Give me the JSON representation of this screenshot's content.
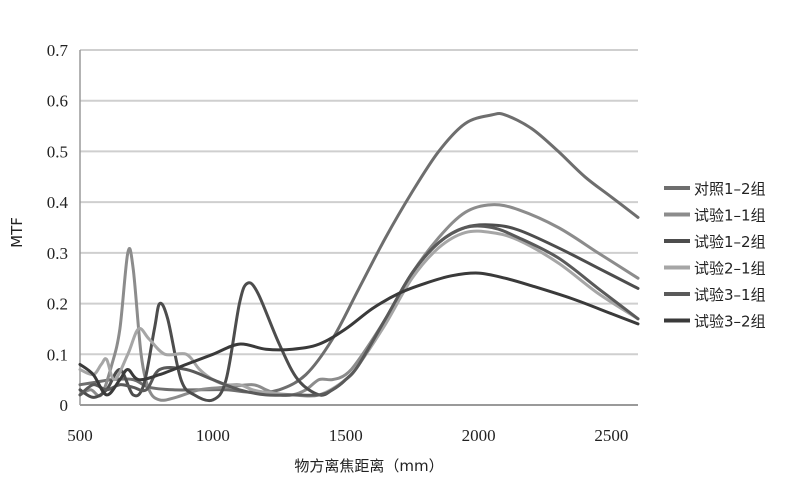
{
  "chart_data": {
    "type": "line",
    "xlabel": "物方离焦距离（mm）",
    "ylabel": "MTF",
    "xlim": [
      500,
      2600
    ],
    "ylim": [
      0,
      0.7
    ],
    "x_ticks": [
      500,
      1000,
      1500,
      2000,
      2500
    ],
    "y_ticks": [
      "0",
      "0.1",
      "0.2",
      "0.3",
      "0.4",
      "0.5",
      "0.6",
      "0.7"
    ],
    "grid": "horizontal",
    "legend_position": "right",
    "series": [
      {
        "name": "对照1–2组",
        "color": "#6e6e6e",
        "points": [
          [
            500,
            0.04
          ],
          [
            560,
            0.045
          ],
          [
            620,
            0.05
          ],
          [
            700,
            0.05
          ],
          [
            760,
            0.035
          ],
          [
            850,
            0.03
          ],
          [
            950,
            0.03
          ],
          [
            1050,
            0.03
          ],
          [
            1150,
            0.025
          ],
          [
            1250,
            0.03
          ],
          [
            1350,
            0.06
          ],
          [
            1450,
            0.13
          ],
          [
            1550,
            0.23
          ],
          [
            1650,
            0.33
          ],
          [
            1750,
            0.42
          ],
          [
            1850,
            0.5
          ],
          [
            1950,
            0.555
          ],
          [
            2050,
            0.572
          ],
          [
            2100,
            0.572
          ],
          [
            2200,
            0.545
          ],
          [
            2300,
            0.5
          ],
          [
            2400,
            0.45
          ],
          [
            2500,
            0.41
          ],
          [
            2600,
            0.37
          ]
        ]
      },
      {
        "name": "试验1–1组",
        "color": "#8c8c8c",
        "points": [
          [
            500,
            0.02
          ],
          [
            540,
            0.03
          ],
          [
            580,
            0.02
          ],
          [
            620,
            0.08
          ],
          [
            650,
            0.15
          ],
          [
            680,
            0.3
          ],
          [
            700,
            0.27
          ],
          [
            730,
            0.1
          ],
          [
            760,
            0.03
          ],
          [
            800,
            0.01
          ],
          [
            860,
            0.015
          ],
          [
            950,
            0.03
          ],
          [
            1050,
            0.035
          ],
          [
            1150,
            0.04
          ],
          [
            1200,
            0.03
          ],
          [
            1250,
            0.02
          ],
          [
            1300,
            0.02
          ],
          [
            1350,
            0.03
          ],
          [
            1400,
            0.05
          ],
          [
            1450,
            0.05
          ],
          [
            1500,
            0.06
          ],
          [
            1550,
            0.09
          ],
          [
            1650,
            0.17
          ],
          [
            1750,
            0.26
          ],
          [
            1850,
            0.33
          ],
          [
            1950,
            0.38
          ],
          [
            2050,
            0.395
          ],
          [
            2150,
            0.385
          ],
          [
            2300,
            0.35
          ],
          [
            2450,
            0.3
          ],
          [
            2600,
            0.25
          ]
        ]
      },
      {
        "name": "试验1–2组",
        "color": "#4d4d4d",
        "points": [
          [
            500,
            0.03
          ],
          [
            550,
            0.015
          ],
          [
            600,
            0.03
          ],
          [
            650,
            0.07
          ],
          [
            700,
            0.02
          ],
          [
            740,
            0.04
          ],
          [
            780,
            0.15
          ],
          [
            800,
            0.2
          ],
          [
            830,
            0.17
          ],
          [
            880,
            0.05
          ],
          [
            930,
            0.02
          ],
          [
            1000,
            0.01
          ],
          [
            1050,
            0.05
          ],
          [
            1100,
            0.2
          ],
          [
            1130,
            0.24
          ],
          [
            1170,
            0.22
          ],
          [
            1250,
            0.12
          ],
          [
            1320,
            0.05
          ],
          [
            1400,
            0.02
          ],
          [
            1450,
            0.03
          ],
          [
            1500,
            0.05
          ],
          [
            1550,
            0.08
          ],
          [
            1650,
            0.17
          ],
          [
            1750,
            0.26
          ],
          [
            1850,
            0.32
          ],
          [
            1950,
            0.35
          ],
          [
            2050,
            0.355
          ],
          [
            2150,
            0.345
          ],
          [
            2300,
            0.31
          ],
          [
            2450,
            0.27
          ],
          [
            2600,
            0.23
          ]
        ]
      },
      {
        "name": "试验2–1组",
        "color": "#a6a6a6",
        "points": [
          [
            500,
            0.07
          ],
          [
            550,
            0.06
          ],
          [
            580,
            0.08
          ],
          [
            600,
            0.09
          ],
          [
            630,
            0.05
          ],
          [
            680,
            0.1
          ],
          [
            720,
            0.15
          ],
          [
            760,
            0.13
          ],
          [
            820,
            0.1
          ],
          [
            900,
            0.1
          ],
          [
            950,
            0.07
          ],
          [
            1000,
            0.05
          ],
          [
            1050,
            0.04
          ],
          [
            1100,
            0.04
          ],
          [
            1150,
            0.03
          ],
          [
            1200,
            0.025
          ],
          [
            1300,
            0.02
          ],
          [
            1400,
            0.02
          ],
          [
            1500,
            0.05
          ],
          [
            1550,
            0.08
          ],
          [
            1650,
            0.16
          ],
          [
            1750,
            0.25
          ],
          [
            1850,
            0.31
          ],
          [
            1950,
            0.34
          ],
          [
            2050,
            0.34
          ],
          [
            2150,
            0.325
          ],
          [
            2300,
            0.28
          ],
          [
            2450,
            0.22
          ],
          [
            2600,
            0.17
          ]
        ]
      },
      {
        "name": "试验3–1组",
        "color": "#5a5a5a",
        "points": [
          [
            500,
            0.02
          ],
          [
            550,
            0.04
          ],
          [
            600,
            0.03
          ],
          [
            650,
            0.04
          ],
          [
            700,
            0.035
          ],
          [
            750,
            0.03
          ],
          [
            800,
            0.07
          ],
          [
            900,
            0.07
          ],
          [
            1000,
            0.05
          ],
          [
            1100,
            0.03
          ],
          [
            1200,
            0.02
          ],
          [
            1300,
            0.02
          ],
          [
            1400,
            0.02
          ],
          [
            1450,
            0.03
          ],
          [
            1500,
            0.05
          ],
          [
            1550,
            0.08
          ],
          [
            1650,
            0.17
          ],
          [
            1750,
            0.26
          ],
          [
            1850,
            0.32
          ],
          [
            1950,
            0.35
          ],
          [
            2050,
            0.35
          ],
          [
            2150,
            0.33
          ],
          [
            2300,
            0.29
          ],
          [
            2450,
            0.23
          ],
          [
            2600,
            0.17
          ]
        ]
      },
      {
        "name": "试验3–2组",
        "color": "#3a3a3a",
        "points": [
          [
            500,
            0.08
          ],
          [
            550,
            0.06
          ],
          [
            600,
            0.02
          ],
          [
            650,
            0.05
          ],
          [
            680,
            0.07
          ],
          [
            720,
            0.05
          ],
          [
            800,
            0.06
          ],
          [
            900,
            0.08
          ],
          [
            1000,
            0.1
          ],
          [
            1100,
            0.12
          ],
          [
            1200,
            0.11
          ],
          [
            1300,
            0.11
          ],
          [
            1400,
            0.12
          ],
          [
            1500,
            0.15
          ],
          [
            1600,
            0.19
          ],
          [
            1700,
            0.22
          ],
          [
            1800,
            0.24
          ],
          [
            1900,
            0.255
          ],
          [
            2000,
            0.26
          ],
          [
            2100,
            0.25
          ],
          [
            2200,
            0.235
          ],
          [
            2350,
            0.21
          ],
          [
            2500,
            0.18
          ],
          [
            2600,
            0.16
          ]
        ]
      }
    ]
  }
}
